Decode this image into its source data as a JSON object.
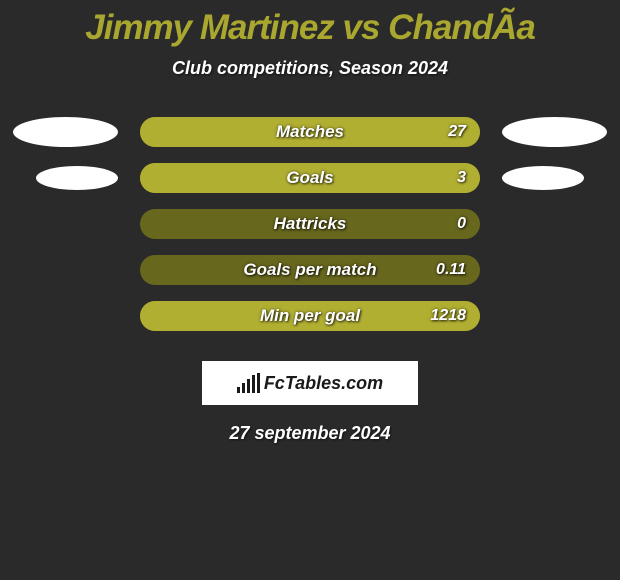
{
  "title": "Jimmy Martinez vs ChandÃ­a",
  "title_color": "#a9a72f",
  "title_fontsize": 35,
  "subtitle": "Club competitions, Season 2024",
  "subtitle_color": "#ffffff",
  "subtitle_fontsize": 18,
  "background_color": "#2a2a2a",
  "bar_bg_color": "#68671e",
  "bar_fill_color": "#b1af32",
  "label_color": "#ffffff",
  "label_fontsize": 17,
  "value_fontsize": 16,
  "ellipse_color": "#ffffff",
  "rows": [
    {
      "label": "Matches",
      "value": "27",
      "fill_pct": 100,
      "left_ellipse": "large",
      "right_ellipse": "large"
    },
    {
      "label": "Goals",
      "value": "3",
      "fill_pct": 100,
      "left_ellipse": "small",
      "right_ellipse": "small"
    },
    {
      "label": "Hattricks",
      "value": "0",
      "fill_pct": 0,
      "left_ellipse": "none",
      "right_ellipse": "none"
    },
    {
      "label": "Goals per match",
      "value": "0.11",
      "fill_pct": 0,
      "left_ellipse": "none",
      "right_ellipse": "none"
    },
    {
      "label": "Min per goal",
      "value": "1218",
      "fill_pct": 100,
      "left_ellipse": "none",
      "right_ellipse": "none"
    }
  ],
  "logo_text": "FcTables.com",
  "date": "27 september 2024",
  "date_color": "#ffffff",
  "date_fontsize": 18
}
